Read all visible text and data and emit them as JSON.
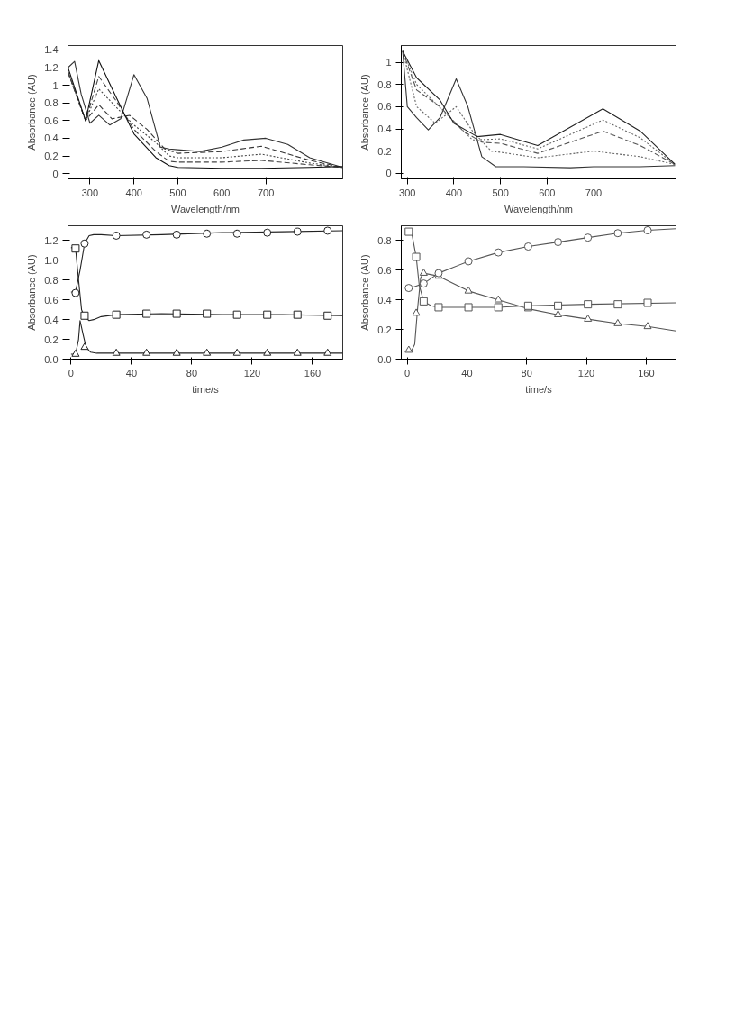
{
  "chart_data": [
    {
      "type": "line",
      "xlabel": "Wavelength/nm",
      "ylabel": "Absorbance (AU)",
      "xlim": [
        250,
        875
      ],
      "ylim": [
        -0.06,
        1.45
      ],
      "xticks": [
        300,
        400,
        500,
        600,
        700
      ],
      "yticks": [
        0,
        0.2,
        0.4,
        0.6,
        0.8,
        1,
        1.2,
        1.4
      ],
      "grid": false,
      "series": [
        {
          "color": "#333333",
          "line_style": "solid",
          "x": [
            250,
            265,
            280,
            300,
            320,
            345,
            370,
            400,
            430,
            460,
            480,
            500,
            550,
            600,
            650,
            700,
            750,
            800,
            875
          ],
          "values": [
            1.2,
            1.27,
            0.9,
            0.57,
            0.66,
            0.55,
            0.62,
            1.12,
            0.85,
            0.3,
            0.28,
            0.27,
            0.25,
            0.3,
            0.38,
            0.4,
            0.33,
            0.18,
            0.07
          ]
        },
        {
          "color": "#333333",
          "line_style": "dashed",
          "x": [
            250,
            290,
            320,
            350,
            390,
            430,
            470,
            500,
            600,
            690,
            800,
            875
          ],
          "values": [
            1.15,
            0.6,
            0.78,
            0.62,
            0.66,
            0.5,
            0.28,
            0.23,
            0.25,
            0.31,
            0.15,
            0.07
          ]
        },
        {
          "color": "#444444",
          "line_style": "dotted",
          "x": [
            250,
            290,
            320,
            360,
            400,
            450,
            480,
            500,
            600,
            690,
            800,
            875
          ],
          "values": [
            1.15,
            0.6,
            0.96,
            0.75,
            0.55,
            0.35,
            0.2,
            0.18,
            0.18,
            0.22,
            0.12,
            0.07
          ]
        },
        {
          "color": "#444444",
          "line_style": "dashed",
          "x": [
            250,
            290,
            320,
            360,
            400,
            450,
            480,
            500,
            600,
            690,
            800,
            875
          ],
          "values": [
            1.15,
            0.6,
            1.1,
            0.82,
            0.5,
            0.25,
            0.14,
            0.13,
            0.13,
            0.15,
            0.1,
            0.07
          ]
        },
        {
          "color": "#111111",
          "line_style": "solid",
          "x": [
            250,
            290,
            320,
            360,
            400,
            450,
            480,
            500,
            600,
            690,
            800,
            875
          ],
          "values": [
            1.2,
            0.6,
            1.28,
            0.86,
            0.45,
            0.18,
            0.09,
            0.07,
            0.06,
            0.06,
            0.07,
            0.08
          ]
        }
      ]
    },
    {
      "type": "line",
      "xlabel": "Wavelength/nm",
      "ylabel": "Absorbance (AU)",
      "xlim": [
        287,
        877
      ],
      "ylim": [
        -0.05,
        1.15
      ],
      "xticks": [
        300,
        400,
        500,
        600,
        700
      ],
      "yticks": [
        0,
        0.2,
        0.4,
        0.6,
        0.8,
        1
      ],
      "grid": false,
      "series": [
        {
          "color": "#333333",
          "line_style": "solid",
          "x": [
            290,
            300,
            320,
            345,
            370,
            405,
            430,
            460,
            490,
            550,
            650,
            700,
            750,
            800,
            875
          ],
          "values": [
            1.1,
            0.6,
            0.5,
            0.39,
            0.5,
            0.85,
            0.6,
            0.15,
            0.06,
            0.06,
            0.05,
            0.06,
            0.06,
            0.06,
            0.07
          ]
        },
        {
          "color": "#666666",
          "line_style": "dotted",
          "x": [
            290,
            320,
            360,
            405,
            440,
            480,
            500,
            580,
            700,
            800,
            875
          ],
          "values": [
            1.1,
            0.6,
            0.45,
            0.6,
            0.38,
            0.2,
            0.19,
            0.14,
            0.2,
            0.15,
            0.08
          ]
        },
        {
          "color": "#555555",
          "line_style": "dashed",
          "x": [
            290,
            320,
            370,
            420,
            460,
            500,
            580,
            720,
            800,
            875
          ],
          "values": [
            1.1,
            0.75,
            0.6,
            0.38,
            0.28,
            0.27,
            0.18,
            0.38,
            0.25,
            0.08
          ]
        },
        {
          "color": "#666666",
          "line_style": "dotted",
          "x": [
            290,
            320,
            380,
            440,
            500,
            580,
            720,
            800,
            875
          ],
          "values": [
            1.1,
            0.8,
            0.55,
            0.3,
            0.31,
            0.22,
            0.48,
            0.32,
            0.08
          ]
        },
        {
          "color": "#222222",
          "line_style": "solid",
          "x": [
            290,
            320,
            370,
            400,
            450,
            500,
            580,
            720,
            800,
            875
          ],
          "values": [
            1.1,
            0.86,
            0.66,
            0.45,
            0.33,
            0.35,
            0.25,
            0.58,
            0.38,
            0.08
          ]
        }
      ]
    },
    {
      "type": "line",
      "xlabel": "time/s",
      "ylabel": "Absorbance (AU)",
      "xlim": [
        -2,
        180
      ],
      "ylim": [
        0,
        1.35
      ],
      "xticks": [
        0,
        40,
        80,
        120,
        160
      ],
      "yticks": [
        {
          "value": 0,
          "label": "0.0"
        },
        {
          "value": 0.2,
          "label": "0.2"
        },
        {
          "value": 0.4,
          "label": "0.4"
        },
        {
          "value": 0.6,
          "label": "0.6"
        },
        {
          "value": 0.8,
          "label": "0.8"
        },
        {
          "value": 1,
          "label": "1.0"
        },
        {
          "value": 1.2,
          "label": "1.2"
        }
      ],
      "grid": false,
      "series": [
        {
          "color": "#222222",
          "line_style": "solid",
          "x": [
            0,
            3,
            6,
            9,
            12,
            15,
            20,
            30,
            60,
            100,
            140,
            180
          ],
          "values": [
            0.68,
            0.68,
            0.9,
            1.17,
            1.25,
            1.26,
            1.26,
            1.25,
            1.26,
            1.28,
            1.29,
            1.3
          ]
        },
        {
          "type": "scatter",
          "marker": "circle",
          "color": "#222222",
          "x": [
            3,
            9,
            30,
            50,
            70,
            90,
            110,
            130,
            150,
            170
          ],
          "values": [
            0.67,
            1.17,
            1.25,
            1.26,
            1.26,
            1.27,
            1.27,
            1.28,
            1.29,
            1.3
          ]
        },
        {
          "color": "#222222",
          "line_style": "solid",
          "x": [
            0,
            3,
            5,
            7,
            9,
            12,
            15,
            20,
            30,
            60,
            100,
            140,
            180
          ],
          "values": [
            1.13,
            1.12,
            0.8,
            0.5,
            0.43,
            0.39,
            0.4,
            0.43,
            0.45,
            0.46,
            0.45,
            0.45,
            0.44
          ]
        },
        {
          "type": "scatter",
          "marker": "square",
          "color": "#222222",
          "x": [
            3,
            9,
            30,
            50,
            70,
            90,
            110,
            130,
            150,
            170
          ],
          "values": [
            1.12,
            0.44,
            0.45,
            0.46,
            0.46,
            0.46,
            0.45,
            0.45,
            0.45,
            0.44
          ]
        },
        {
          "color": "#222222",
          "line_style": "solid",
          "x": [
            0,
            3,
            5,
            6,
            8,
            10,
            13,
            17,
            25,
            60,
            180
          ],
          "values": [
            0.05,
            0.05,
            0.2,
            0.39,
            0.25,
            0.12,
            0.07,
            0.06,
            0.06,
            0.06,
            0.06
          ]
        },
        {
          "type": "scatter",
          "marker": "triangle",
          "color": "#222222",
          "x": [
            3,
            9,
            30,
            50,
            70,
            90,
            110,
            130,
            150,
            170
          ],
          "values": [
            0.05,
            0.12,
            0.06,
            0.06,
            0.06,
            0.06,
            0.06,
            0.06,
            0.06,
            0.06
          ]
        }
      ]
    },
    {
      "type": "line",
      "xlabel": "time/s",
      "ylabel": "Absorbance (AU)",
      "xlim": [
        -4,
        180
      ],
      "ylim": [
        0,
        0.9
      ],
      "xticks": [
        0,
        40,
        80,
        120,
        160
      ],
      "yticks": [
        {
          "value": 0,
          "label": "0.0"
        },
        {
          "value": 0.2,
          "label": "0.2"
        },
        {
          "value": 0.4,
          "label": "0.4"
        },
        {
          "value": 0.6,
          "label": "0.6"
        },
        {
          "value": 0.8,
          "label": "0.8"
        }
      ],
      "grid": false,
      "series": [
        {
          "color": "#555555",
          "line_style": "solid",
          "x": [
            0,
            5,
            11,
            21,
            41,
            61,
            81,
            101,
            121,
            141,
            161,
            180
          ],
          "values": [
            0.47,
            0.49,
            0.51,
            0.58,
            0.66,
            0.72,
            0.76,
            0.79,
            0.82,
            0.85,
            0.87,
            0.88
          ]
        },
        {
          "type": "scatter",
          "marker": "circle",
          "color": "#555555",
          "x": [
            1,
            11,
            21,
            41,
            61,
            81,
            101,
            121,
            141,
            161
          ],
          "values": [
            0.48,
            0.51,
            0.58,
            0.66,
            0.72,
            0.76,
            0.79,
            0.82,
            0.85,
            0.87
          ]
        },
        {
          "color": "#555555",
          "line_style": "solid",
          "x": [
            0,
            3,
            6,
            8,
            11,
            16,
            21,
            30,
            41,
            61,
            81,
            121,
            180
          ],
          "values": [
            0.86,
            0.85,
            0.69,
            0.5,
            0.39,
            0.36,
            0.35,
            0.35,
            0.35,
            0.35,
            0.36,
            0.37,
            0.38
          ]
        },
        {
          "type": "scatter",
          "marker": "square",
          "color": "#555555",
          "x": [
            1,
            6,
            11,
            21,
            41,
            61,
            81,
            101,
            121,
            141,
            161
          ],
          "values": [
            0.86,
            0.69,
            0.39,
            0.35,
            0.35,
            0.35,
            0.36,
            0.36,
            0.37,
            0.37,
            0.38
          ]
        },
        {
          "color": "#555555",
          "line_style": "solid",
          "x": [
            0,
            3,
            5,
            7,
            9,
            11,
            21,
            41,
            61,
            81,
            101,
            121,
            141,
            161,
            180
          ],
          "values": [
            0.06,
            0.06,
            0.1,
            0.35,
            0.55,
            0.58,
            0.56,
            0.46,
            0.4,
            0.34,
            0.3,
            0.27,
            0.24,
            0.22,
            0.19
          ]
        },
        {
          "type": "scatter",
          "marker": "triangle",
          "color": "#555555",
          "x": [
            1,
            6,
            11,
            21,
            41,
            61,
            81,
            101,
            121,
            141,
            161
          ],
          "values": [
            0.06,
            0.31,
            0.58,
            0.56,
            0.46,
            0.4,
            0.34,
            0.3,
            0.27,
            0.24,
            0.22
          ]
        }
      ]
    }
  ]
}
